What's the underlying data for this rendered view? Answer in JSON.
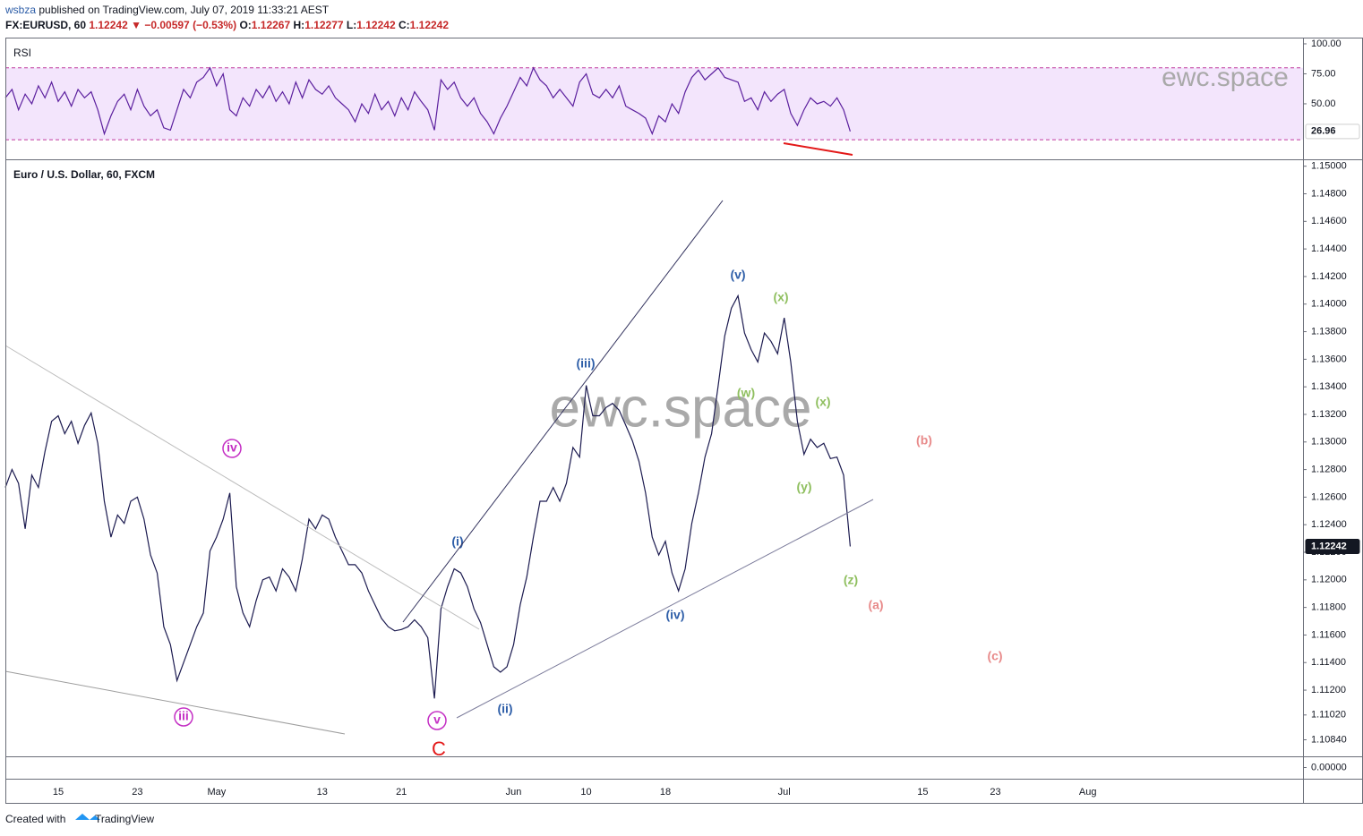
{
  "header": {
    "author": "wsbza",
    "published": "published on TradingView.com, July 07, 2019 11:33:21 AEST",
    "symbol": "FX:EURUSD, 60",
    "last": 1.12242,
    "arrow": "▼",
    "change": "−0.00597 (−0.53%)",
    "o_label": "O:",
    "o": 1.12267,
    "h_label": "H:",
    "h": 1.12277,
    "l_label": "L:",
    "l": 1.12242,
    "c_label": "C:",
    "c": 1.12242
  },
  "footer": {
    "text": "Created with",
    "brand": "TradingView"
  },
  "chart_data": [
    {
      "type": "line",
      "title": "Euro / U.S. Dollar, 60, FXCM",
      "watermark": "ewc.space",
      "categories": [
        null,
        null,
        null,
        null,
        null,
        null,
        null,
        null,
        "15",
        null,
        null,
        null,
        null,
        null,
        null,
        null,
        null,
        null,
        null,
        null,
        "23",
        null,
        null,
        null,
        null,
        null,
        null,
        null,
        null,
        null,
        null,
        null,
        "May",
        null,
        null,
        null,
        null,
        null,
        null,
        null,
        null,
        null,
        null,
        null,
        null,
        null,
        null,
        null,
        "13",
        null,
        null,
        null,
        null,
        null,
        null,
        null,
        null,
        null,
        null,
        null,
        "21",
        null,
        null,
        null,
        null,
        null,
        null,
        null,
        null,
        null,
        null,
        null,
        null,
        null,
        null,
        null,
        null,
        "Jun",
        null,
        null,
        null,
        null,
        null,
        null,
        null,
        null,
        null,
        null,
        "10",
        null,
        null,
        null,
        null,
        null,
        null,
        null,
        null,
        null,
        null,
        null,
        "18",
        null,
        null,
        null,
        null,
        null,
        null,
        null,
        null,
        null,
        null,
        null,
        null,
        null,
        null,
        null,
        null,
        null,
        "Jul",
        null,
        null,
        null,
        null,
        null,
        null,
        null,
        null,
        null,
        null,
        null,
        null,
        null,
        null,
        null,
        null,
        null,
        null,
        null,
        null,
        "15",
        null,
        null,
        null,
        null,
        null,
        null,
        null,
        null,
        null,
        null,
        "23",
        null,
        null,
        null,
        null,
        null,
        null,
        null,
        null,
        null,
        null,
        null,
        null,
        null,
        "Aug",
        null,
        null,
        null,
        null,
        null,
        null,
        null,
        null,
        null,
        null,
        null,
        null,
        null,
        null,
        null,
        null,
        null,
        null,
        null,
        null,
        null,
        null,
        null,
        null,
        null,
        null,
        null,
        null,
        null,
        null,
        null,
        null
      ],
      "series": [
        {
          "name": "EURUSD",
          "color": "#1c1b50",
          "values": [
            1.1267,
            1.128,
            1.127,
            1.1237,
            1.1276,
            1.1267,
            1.1293,
            1.1315,
            1.1319,
            1.1306,
            1.1315,
            1.1299,
            1.1312,
            1.1321,
            1.1299,
            1.1257,
            1.1231,
            1.1247,
            1.1241,
            1.1257,
            1.126,
            1.1244,
            1.1218,
            1.1205,
            1.1166,
            1.1153,
            1.1127,
            1.114,
            1.1153,
            1.1166,
            1.1176,
            1.1221,
            1.1231,
            1.1244,
            1.1263,
            1.1195,
            1.1176,
            1.1166,
            1.1185,
            1.12,
            1.1202,
            1.1192,
            1.1208,
            1.1202,
            1.1192,
            1.1215,
            1.1244,
            1.1237,
            1.1247,
            1.1244,
            1.1231,
            1.1221,
            1.1211,
            1.1211,
            1.1205,
            1.1192,
            1.1182,
            1.1172,
            1.1166,
            1.1163,
            1.1164,
            1.1166,
            1.1171,
            1.1166,
            1.1158,
            1.1114,
            1.1179,
            1.1195,
            1.1208,
            1.1205,
            1.1195,
            1.1179,
            1.1169,
            1.1153,
            1.1137,
            1.1133,
            1.1137,
            1.1153,
            1.1182,
            1.1202,
            1.1231,
            1.1257,
            1.1257,
            1.1267,
            1.1257,
            1.127,
            1.1296,
            1.1289,
            1.1341,
            1.1319,
            1.1319,
            1.1325,
            1.1328,
            1.1323,
            1.1312,
            1.1301,
            1.1286,
            1.1263,
            1.1231,
            1.1218,
            1.1228,
            1.1205,
            1.1192,
            1.1208,
            1.1241,
            1.1263,
            1.1289,
            1.1306,
            1.1341,
            1.1377,
            1.1397,
            1.1406,
            1.1379,
            1.1367,
            1.1358,
            1.1379,
            1.1373,
            1.1364,
            1.139,
            1.1358,
            1.1315,
            1.1291,
            1.1302,
            1.1296,
            1.1299,
            1.1288,
            1.1289,
            1.1276,
            1.12242,
            null,
            null,
            null,
            null,
            null,
            null,
            null,
            null,
            null,
            null,
            null,
            null,
            null,
            null,
            null,
            null,
            null,
            null,
            null,
            null,
            null,
            null,
            null,
            null,
            null,
            null,
            null,
            null,
            null,
            null,
            null,
            null,
            null,
            null,
            null,
            null,
            null,
            null,
            null,
            null,
            null,
            null,
            null,
            null,
            null,
            null,
            null,
            null,
            null,
            null,
            null,
            null,
            null,
            null,
            null,
            null,
            null,
            null,
            null,
            null,
            null,
            null,
            null,
            null,
            null,
            null,
            null,
            null
          ]
        }
      ],
      "ylim": [
        1.1072,
        1.1505
      ],
      "yticks": [
        {
          "value": 1.15,
          "label": "1.15000"
        },
        {
          "value": 1.148,
          "label": "1.14800"
        },
        {
          "value": 1.146,
          "label": "1.14600"
        },
        {
          "value": 1.144,
          "label": "1.14400"
        },
        {
          "value": 1.142,
          "label": "1.14200"
        },
        {
          "value": 1.14,
          "label": "1.14000"
        },
        {
          "value": 1.138,
          "label": "1.13800"
        },
        {
          "value": 1.136,
          "label": "1.13600"
        },
        {
          "value": 1.134,
          "label": "1.13400"
        },
        {
          "value": 1.132,
          "label": "1.13200"
        },
        {
          "value": 1.13,
          "label": "1.13000"
        },
        {
          "value": 1.128,
          "label": "1.12800"
        },
        {
          "value": 1.126,
          "label": "1.12600"
        },
        {
          "value": 1.124,
          "label": "1.12400"
        },
        {
          "value": 1.122,
          "label": "1.12200"
        },
        {
          "value": 1.12,
          "label": "1.12000"
        },
        {
          "value": 1.118,
          "label": "1.11800"
        },
        {
          "value": 1.116,
          "label": "1.11600"
        },
        {
          "value": 1.114,
          "label": "1.11400"
        },
        {
          "value": 1.112,
          "label": "1.11200"
        },
        {
          "value": 1.1102,
          "label": "1.11020"
        },
        {
          "value": 1.1084,
          "label": "1.10840"
        }
      ],
      "last_label_color": "#131722",
      "annotations": [
        {
          "text": "iv",
          "color": "#c42fc4",
          "circled": true
        },
        {
          "text": "iii",
          "color": "#c42fc4",
          "circled": true
        },
        {
          "text": "v",
          "color": "#c42fc4",
          "circled": true
        },
        {
          "text": "C",
          "color": "#e31919",
          "circled": false
        },
        {
          "text": "(i)",
          "color": "#2e5ea8",
          "circled": false
        },
        {
          "text": "(ii)",
          "color": "#2e5ea8",
          "circled": false
        },
        {
          "text": "(iii)",
          "color": "#2e5ea8",
          "circled": false
        },
        {
          "text": "(iv)",
          "color": "#2e5ea8",
          "circled": false
        },
        {
          "text": "(v)",
          "color": "#2e5ea8",
          "circled": false
        },
        {
          "text": "(w)",
          "color": "#8fbf5f",
          "circled": false
        },
        {
          "text": "(x)",
          "color": "#8fbf5f",
          "circled": false
        },
        {
          "text": "(x)",
          "color": "#8fbf5f",
          "circled": false
        },
        {
          "text": "(y)",
          "color": "#8fbf5f",
          "circled": false
        },
        {
          "text": "(z)",
          "color": "#8fbf5f",
          "circled": false
        },
        {
          "text": "(a)",
          "color": "#e88a8a",
          "circled": false
        },
        {
          "text": "(b)",
          "color": "#e88a8a",
          "circled": false
        },
        {
          "text": "(c)",
          "color": "#e88a8a",
          "circled": false
        }
      ]
    },
    {
      "type": "line",
      "title": "RSI",
      "watermark": "ewc.space",
      "series": [
        {
          "name": "RSI",
          "color": "#5b1f9e",
          "values": [
            55,
            62,
            45,
            58,
            50,
            65,
            55,
            68,
            52,
            60,
            48,
            62,
            55,
            60,
            45,
            25,
            40,
            52,
            58,
            45,
            62,
            48,
            40,
            45,
            30,
            28,
            45,
            62,
            55,
            68,
            72,
            80,
            65,
            75,
            45,
            40,
            55,
            48,
            62,
            55,
            65,
            52,
            60,
            50,
            68,
            55,
            70,
            62,
            58,
            65,
            55,
            50,
            45,
            35,
            50,
            42,
            58,
            45,
            52,
            40,
            55,
            45,
            60,
            52,
            45,
            28,
            70,
            62,
            68,
            55,
            48,
            55,
            42,
            35,
            25,
            38,
            48,
            60,
            72,
            65,
            80,
            70,
            65,
            55,
            62,
            55,
            48,
            68,
            75,
            58,
            55,
            62,
            55,
            65,
            48,
            45,
            42,
            38,
            25,
            40,
            35,
            50,
            42,
            60,
            72,
            78,
            70,
            75,
            80,
            72,
            70,
            68,
            52,
            55,
            45,
            60,
            52,
            58,
            62,
            42,
            32,
            45,
            55,
            50,
            52,
            48,
            55,
            45,
            26.96,
            null,
            null,
            null,
            null,
            null,
            null,
            null,
            null,
            null,
            null,
            null,
            null,
            null,
            null,
            null,
            null,
            null,
            null,
            null,
            null,
            null,
            null,
            null,
            null,
            null,
            null,
            null,
            null,
            null,
            null,
            null,
            null,
            null,
            null,
            null,
            null,
            null,
            null,
            null,
            null,
            null,
            null,
            null,
            null,
            null,
            null,
            null,
            null,
            null,
            null,
            null,
            null,
            null,
            null,
            null,
            null,
            null,
            null,
            null,
            null,
            null,
            null,
            null,
            null,
            null,
            null,
            null,
            null
          ]
        }
      ],
      "ylim": [
        3.7,
        105.2
      ],
      "yticks": [
        {
          "value": 100,
          "label": "100.00"
        },
        {
          "value": 75,
          "label": "75.00"
        },
        {
          "value": 50,
          "label": "50.00"
        }
      ],
      "band": [
        20,
        80
      ],
      "band_color": "#f3e5fc",
      "band_line_color": "#c0399d",
      "last_label_color": "#ffffff"
    },
    {
      "type": "pane",
      "ylim": [
        -1,
        1
      ],
      "yticks": [
        {
          "value": 0,
          "label": "0.00000"
        }
      ]
    }
  ]
}
